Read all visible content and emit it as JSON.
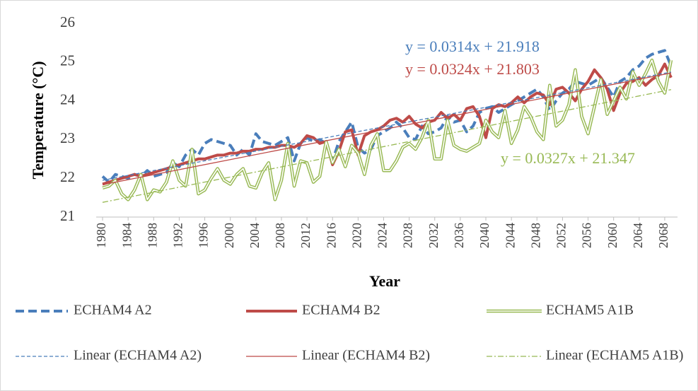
{
  "chart_data": {
    "type": "line",
    "y_label": "Temperature (°C)",
    "x_label": "Year",
    "x": [
      1980,
      1981,
      1982,
      1983,
      1984,
      1985,
      1986,
      1987,
      1988,
      1989,
      1990,
      1991,
      1992,
      1993,
      1994,
      1995,
      1996,
      1997,
      1998,
      1999,
      2000,
      2001,
      2002,
      2003,
      2004,
      2005,
      2006,
      2007,
      2008,
      2009,
      2010,
      2011,
      2012,
      2013,
      2014,
      2015,
      2016,
      2017,
      2018,
      2019,
      2020,
      2021,
      2022,
      2023,
      2024,
      2025,
      2026,
      2027,
      2028,
      2029,
      2030,
      2031,
      2032,
      2033,
      2034,
      2035,
      2036,
      2037,
      2038,
      2039,
      2040,
      2041,
      2042,
      2043,
      2044,
      2045,
      2046,
      2047,
      2048,
      2049,
      2050,
      2051,
      2052,
      2053,
      2054,
      2055,
      2056,
      2057,
      2058,
      2059,
      2060,
      2061,
      2062,
      2063,
      2064,
      2065,
      2066,
      2067,
      2068,
      2069
    ],
    "xlim": [
      1979,
      2070
    ],
    "xticks": [
      1980,
      1984,
      1988,
      1992,
      1996,
      2000,
      2004,
      2008,
      2012,
      2016,
      2020,
      2024,
      2028,
      2032,
      2036,
      2040,
      2044,
      2048,
      2052,
      2056,
      2060,
      2064,
      2068
    ],
    "ylim": [
      21,
      26
    ],
    "yticks": [
      21,
      22,
      23,
      24,
      25,
      26
    ],
    "grid": false,
    "series": [
      {
        "name": "ECHAM4 A2",
        "color": "#4a7ebb",
        "style": "dashed",
        "values": [
          22.05,
          21.9,
          22.1,
          22.05,
          22.0,
          22.1,
          22.05,
          22.2,
          22.05,
          22.1,
          22.15,
          22.4,
          22.3,
          22.6,
          22.75,
          22.6,
          22.9,
          23.0,
          22.95,
          22.9,
          22.85,
          22.6,
          22.75,
          22.6,
          23.15,
          22.95,
          22.9,
          22.85,
          22.95,
          23.05,
          22.45,
          22.9,
          23.05,
          22.95,
          23.0,
          22.9,
          22.45,
          22.95,
          23.2,
          23.45,
          22.8,
          22.65,
          22.75,
          23.1,
          23.2,
          23.3,
          23.45,
          23.3,
          23.05,
          23.0,
          23.35,
          23.15,
          23.2,
          23.3,
          23.6,
          23.45,
          23.5,
          23.2,
          23.35,
          23.7,
          23.8,
          23.85,
          23.7,
          23.8,
          23.9,
          24.0,
          24.1,
          24.2,
          24.3,
          24.1,
          23.75,
          24.0,
          24.2,
          24.3,
          24.5,
          24.45,
          24.4,
          24.5,
          24.6,
          24.35,
          24.1,
          24.5,
          24.6,
          24.8,
          24.9,
          25.1,
          25.2,
          25.25,
          25.3,
          24.9
        ]
      },
      {
        "name": "ECHAM4 B2",
        "color": "#be4b48",
        "style": "solid",
        "values": [
          21.85,
          21.9,
          21.95,
          22.0,
          22.05,
          22.1,
          22.05,
          22.1,
          22.15,
          22.2,
          22.25,
          22.3,
          22.35,
          22.4,
          22.45,
          22.5,
          22.5,
          22.55,
          22.6,
          22.6,
          22.65,
          22.65,
          22.7,
          22.7,
          22.75,
          22.75,
          22.8,
          22.8,
          22.85,
          22.85,
          22.8,
          22.9,
          23.1,
          23.05,
          22.9,
          22.95,
          22.35,
          22.7,
          23.2,
          23.25,
          22.6,
          23.1,
          23.2,
          23.25,
          23.35,
          23.5,
          23.55,
          23.45,
          23.6,
          23.4,
          23.3,
          23.45,
          23.5,
          23.7,
          23.55,
          23.65,
          23.5,
          23.8,
          23.85,
          23.6,
          23.05,
          23.8,
          23.9,
          23.85,
          23.95,
          24.1,
          23.95,
          24.1,
          24.2,
          24.15,
          23.9,
          24.3,
          24.35,
          24.2,
          24.0,
          24.3,
          24.5,
          24.8,
          24.6,
          24.3,
          23.75,
          24.2,
          24.45,
          24.5,
          24.6,
          24.4,
          24.55,
          24.65,
          24.95,
          24.6
        ]
      },
      {
        "name": "ECHAM5 A1B",
        "color": "#98b954",
        "style": "double",
        "values": [
          21.75,
          21.8,
          21.95,
          21.6,
          21.45,
          21.7,
          22.1,
          21.45,
          21.7,
          21.65,
          21.9,
          22.45,
          21.95,
          21.8,
          22.75,
          21.6,
          21.7,
          22.0,
          22.25,
          21.95,
          21.85,
          22.1,
          22.25,
          21.8,
          21.75,
          22.15,
          22.4,
          21.45,
          21.95,
          22.9,
          21.8,
          22.45,
          22.4,
          21.9,
          22.05,
          22.95,
          22.4,
          22.75,
          22.3,
          22.85,
          22.65,
          22.1,
          22.85,
          23.15,
          22.2,
          22.2,
          22.45,
          22.8,
          22.9,
          22.75,
          23.05,
          23.5,
          22.5,
          22.5,
          23.5,
          22.85,
          22.75,
          22.7,
          22.8,
          22.9,
          23.5,
          23.2,
          23.05,
          23.75,
          22.9,
          23.25,
          23.85,
          23.6,
          23.2,
          23.0,
          24.4,
          23.35,
          23.5,
          23.9,
          24.8,
          23.6,
          23.15,
          23.85,
          24.55,
          23.65,
          24.0,
          24.35,
          24.05,
          24.75,
          24.4,
          24.7,
          25.05,
          24.5,
          24.2,
          25.05
        ]
      }
    ],
    "trendlines": [
      {
        "name": "Linear (ECHAM4 A2)",
        "color": "#4a7ebb",
        "style": "dashed",
        "slope": 0.0314,
        "intercept": 21.918,
        "equation": "y = 0.0314x + 21.918"
      },
      {
        "name": "Linear (ECHAM4 B2)",
        "color": "#be4b48",
        "style": "solid",
        "slope": 0.0324,
        "intercept": 21.803,
        "equation": "y = 0.0324x + 21.803"
      },
      {
        "name": "Linear (ECHAM5 A1B)",
        "color": "#98b954",
        "style": "dashdot",
        "slope": 0.0327,
        "intercept": 21.347,
        "equation": "y = 0.0327x + 21.347"
      }
    ]
  }
}
